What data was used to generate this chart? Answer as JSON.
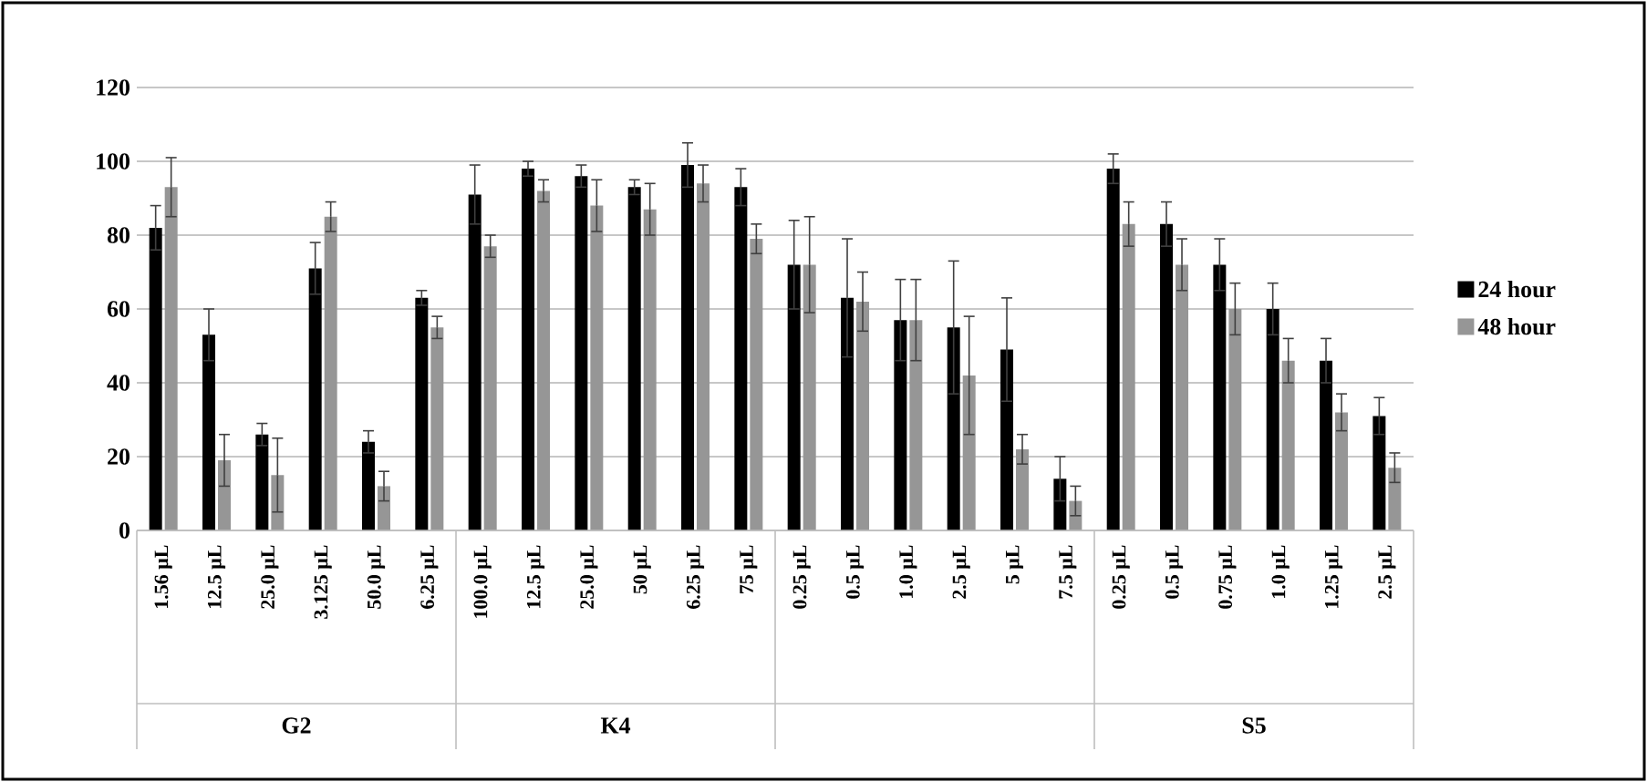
{
  "chart_data": {
    "type": "bar",
    "categories": [
      "1.56 µL",
      "12.5 µL",
      "25.0 µL",
      "3.125 µL",
      "50.0 µL",
      "6.25 µL",
      "100.0 µL",
      "12.5 µL",
      "25.0 µL",
      "50 µL",
      "6.25 µL",
      "75 µL",
      "0.25 µL",
      "0.5 µL",
      "1.0 µL",
      "2.5 µL",
      "5 µL",
      "7.5 µL",
      "0.25 µL",
      "0.5 µL",
      "0.75 µL",
      "1.0 µL",
      "1.25 µL",
      "2.5 µL"
    ],
    "series": [
      {
        "name": "24 hour",
        "color": "#000000",
        "values": [
          82,
          53,
          26,
          71,
          24,
          63,
          91,
          98,
          96,
          93,
          99,
          93,
          72,
          63,
          57,
          55,
          49,
          14,
          98,
          83,
          72,
          60,
          46,
          31
        ],
        "errors": [
          6,
          7,
          3,
          7,
          3,
          2,
          8,
          2,
          3,
          2,
          6,
          5,
          12,
          16,
          11,
          18,
          14,
          6,
          4,
          6,
          7,
          7,
          6,
          5
        ]
      },
      {
        "name": "48 hour",
        "color": "#969696",
        "values": [
          93,
          19,
          15,
          85,
          12,
          55,
          77,
          92,
          88,
          87,
          94,
          79,
          72,
          62,
          57,
          42,
          22,
          8,
          83,
          72,
          60,
          46,
          32,
          17
        ],
        "errors": [
          8,
          7,
          10,
          4,
          4,
          3,
          3,
          3,
          7,
          7,
          5,
          4,
          13,
          8,
          11,
          16,
          4,
          4,
          6,
          7,
          7,
          6,
          5,
          4
        ]
      }
    ],
    "ylim": [
      0,
      120
    ],
    "yticks": [
      0,
      20,
      40,
      60,
      80,
      100,
      120
    ],
    "grid": "y",
    "legend": "right",
    "annotations": [
      "G2",
      "K4",
      "S5"
    ]
  }
}
